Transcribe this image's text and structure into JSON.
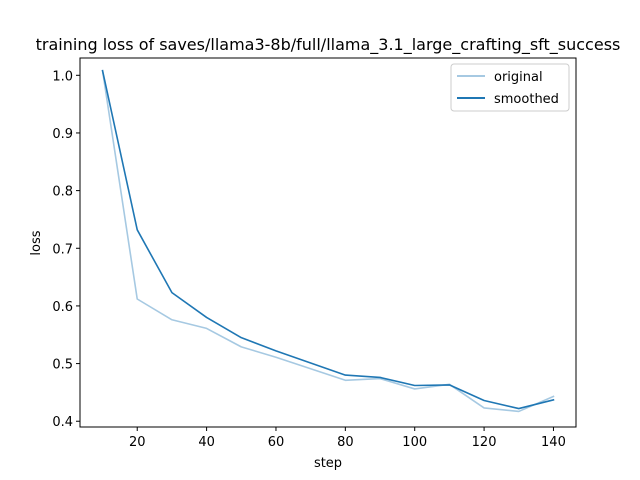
{
  "chart_data": {
    "type": "line",
    "title": "training loss of saves/llama3-8b/full/llama_3.1_large_crafting_sft_success",
    "xlabel": "step",
    "ylabel": "loss",
    "xlim": [
      3.5,
      146.5
    ],
    "ylim": [
      0.39,
      1.03
    ],
    "xticks": [
      20,
      40,
      60,
      80,
      100,
      120,
      140
    ],
    "yticks": [
      0.4,
      0.5,
      0.6,
      0.7,
      0.8,
      0.9,
      1.0
    ],
    "xtick_labels": [
      "20",
      "40",
      "60",
      "80",
      "100",
      "120",
      "140"
    ],
    "ytick_labels": [
      "0.4",
      "0.5",
      "0.6",
      "0.7",
      "0.8",
      "0.9",
      "1.0"
    ],
    "grid": false,
    "legend_position": "top-right",
    "x": [
      10,
      20,
      30,
      40,
      50,
      60,
      70,
      80,
      90,
      100,
      110,
      120,
      130,
      140
    ],
    "series": [
      {
        "name": "original",
        "color": "#a6c9e2",
        "values": [
          1.008,
          0.612,
          0.576,
          0.561,
          0.529,
          0.511,
          0.491,
          0.471,
          0.474,
          0.456,
          0.464,
          0.423,
          0.417,
          0.443
        ]
      },
      {
        "name": "smoothed",
        "color": "#1f77b4",
        "values": [
          1.008,
          0.732,
          0.623,
          0.58,
          0.545,
          0.522,
          0.501,
          0.48,
          0.476,
          0.462,
          0.463,
          0.436,
          0.422,
          0.437
        ]
      }
    ]
  }
}
